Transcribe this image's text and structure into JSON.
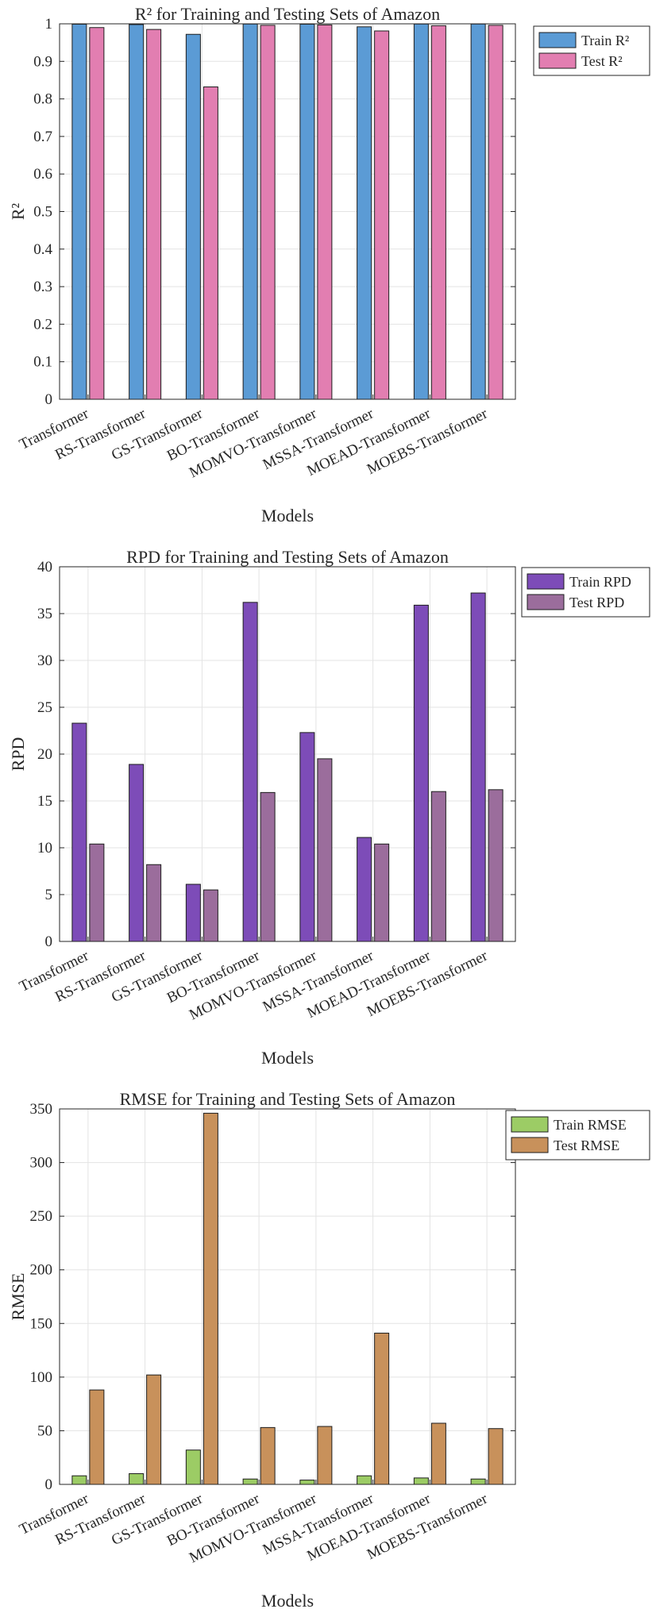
{
  "chart_data": [
    {
      "type": "bar",
      "title": "R² for Training and Testing Sets of Amazon",
      "xlabel": "Models",
      "ylabel": "R²",
      "ylim": [
        0,
        1
      ],
      "yticks": [
        0,
        0.1,
        0.2,
        0.3,
        0.4,
        0.5,
        0.6,
        0.7,
        0.8,
        0.9,
        1
      ],
      "grid": true,
      "legend_position": "outside-top-right",
      "categories": [
        "Transformer",
        "RS-Transformer",
        "GS-Transformer",
        "BO-Transformer",
        "MOMVO-Transformer",
        "MSSA-Transformer",
        "MOEAD-Transformer",
        "MOEBS-Transformer"
      ],
      "series": [
        {
          "name": "Train R²",
          "color": "#5b9bd5",
          "values": [
            0.999,
            0.998,
            0.972,
            0.9995,
            0.999,
            0.992,
            0.9995,
            0.9995
          ]
        },
        {
          "name": "Test R²",
          "color": "#e27eb1",
          "values": [
            0.99,
            0.985,
            0.832,
            0.996,
            0.997,
            0.981,
            0.995,
            0.996
          ]
        }
      ]
    },
    {
      "type": "bar",
      "title": "RPD for Training and Testing Sets of Amazon",
      "xlabel": "Models",
      "ylabel": "RPD",
      "ylim": [
        0,
        40
      ],
      "yticks": [
        0,
        5,
        10,
        15,
        20,
        25,
        30,
        35,
        40
      ],
      "grid": true,
      "legend_position": "outside-top-right",
      "categories": [
        "Transformer",
        "RS-Transformer",
        "GS-Transformer",
        "BO-Transformer",
        "MOMVO-Transformer",
        "MSSA-Transformer",
        "MOEAD-Transformer",
        "MOEBS-Transformer"
      ],
      "series": [
        {
          "name": "Train RPD",
          "color": "#7d4cb8",
          "values": [
            23.3,
            18.9,
            6.1,
            36.2,
            22.3,
            11.1,
            35.9,
            37.2
          ]
        },
        {
          "name": "Test RPD",
          "color": "#9b6d9c",
          "values": [
            10.4,
            8.2,
            5.5,
            15.9,
            19.5,
            10.4,
            16.0,
            16.2
          ]
        }
      ]
    },
    {
      "type": "bar",
      "title": "RMSE for Training and Testing Sets of Amazon",
      "xlabel": "Models",
      "ylabel": "RMSE",
      "ylim": [
        0,
        350
      ],
      "yticks": [
        0,
        50,
        100,
        150,
        200,
        250,
        300,
        350
      ],
      "grid": true,
      "legend_position": "outside-top-right",
      "categories": [
        "Transformer",
        "RS-Transformer",
        "GS-Transformer",
        "BO-Transformer",
        "MOMVO-Transformer",
        "MSSA-Transformer",
        "MOEAD-Transformer",
        "MOEBS-Transformer"
      ],
      "series": [
        {
          "name": "Train RMSE",
          "color": "#9ccc65",
          "values": [
            8,
            10,
            32,
            5,
            4,
            8,
            6,
            5
          ]
        },
        {
          "name": "Test RMSE",
          "color": "#c8915b",
          "values": [
            88,
            102,
            346,
            53,
            54,
            141,
            57,
            52
          ]
        }
      ]
    }
  ]
}
